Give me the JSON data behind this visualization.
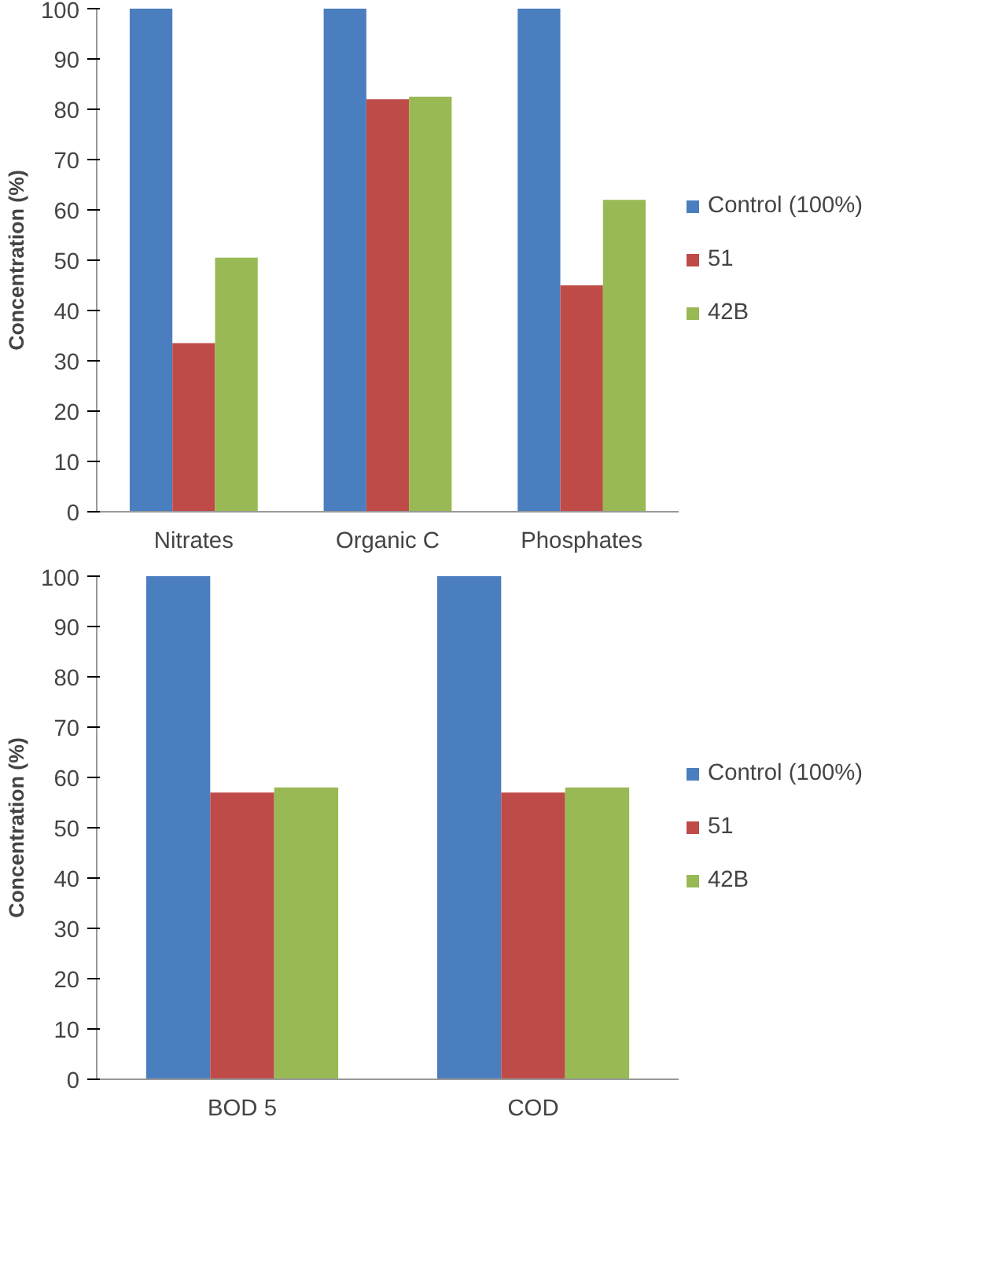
{
  "chart_data": [
    {
      "type": "bar",
      "ylabel": "Concentration (%)",
      "categories": [
        "Nitrates",
        "Organic C",
        "Phosphates"
      ],
      "ylim": [
        0,
        100
      ],
      "yticks": [
        0,
        10,
        20,
        30,
        40,
        50,
        60,
        70,
        80,
        90,
        100
      ],
      "grid": false,
      "legend": "right",
      "series": [
        {
          "name": "Control (100%)",
          "color": "#4a7ebf",
          "values": [
            100,
            100,
            100
          ]
        },
        {
          "name": "51",
          "color": "#be4b48",
          "values": [
            33.5,
            82,
            45
          ]
        },
        {
          "name": "42B",
          "color": "#98b954",
          "values": [
            50.5,
            82.5,
            62
          ]
        }
      ]
    },
    {
      "type": "bar",
      "ylabel": "Concentration (%)",
      "categories": [
        "BOD 5",
        "COD"
      ],
      "ylim": [
        0,
        100
      ],
      "yticks": [
        0,
        10,
        20,
        30,
        40,
        50,
        60,
        70,
        80,
        90,
        100
      ],
      "grid": false,
      "legend": "right",
      "series": [
        {
          "name": "Control (100%)",
          "color": "#4a7ebf",
          "values": [
            100,
            100
          ]
        },
        {
          "name": "51",
          "color": "#be4b48",
          "values": [
            57,
            57
          ]
        },
        {
          "name": "42B",
          "color": "#98b954",
          "values": [
            58,
            58
          ]
        }
      ]
    }
  ]
}
